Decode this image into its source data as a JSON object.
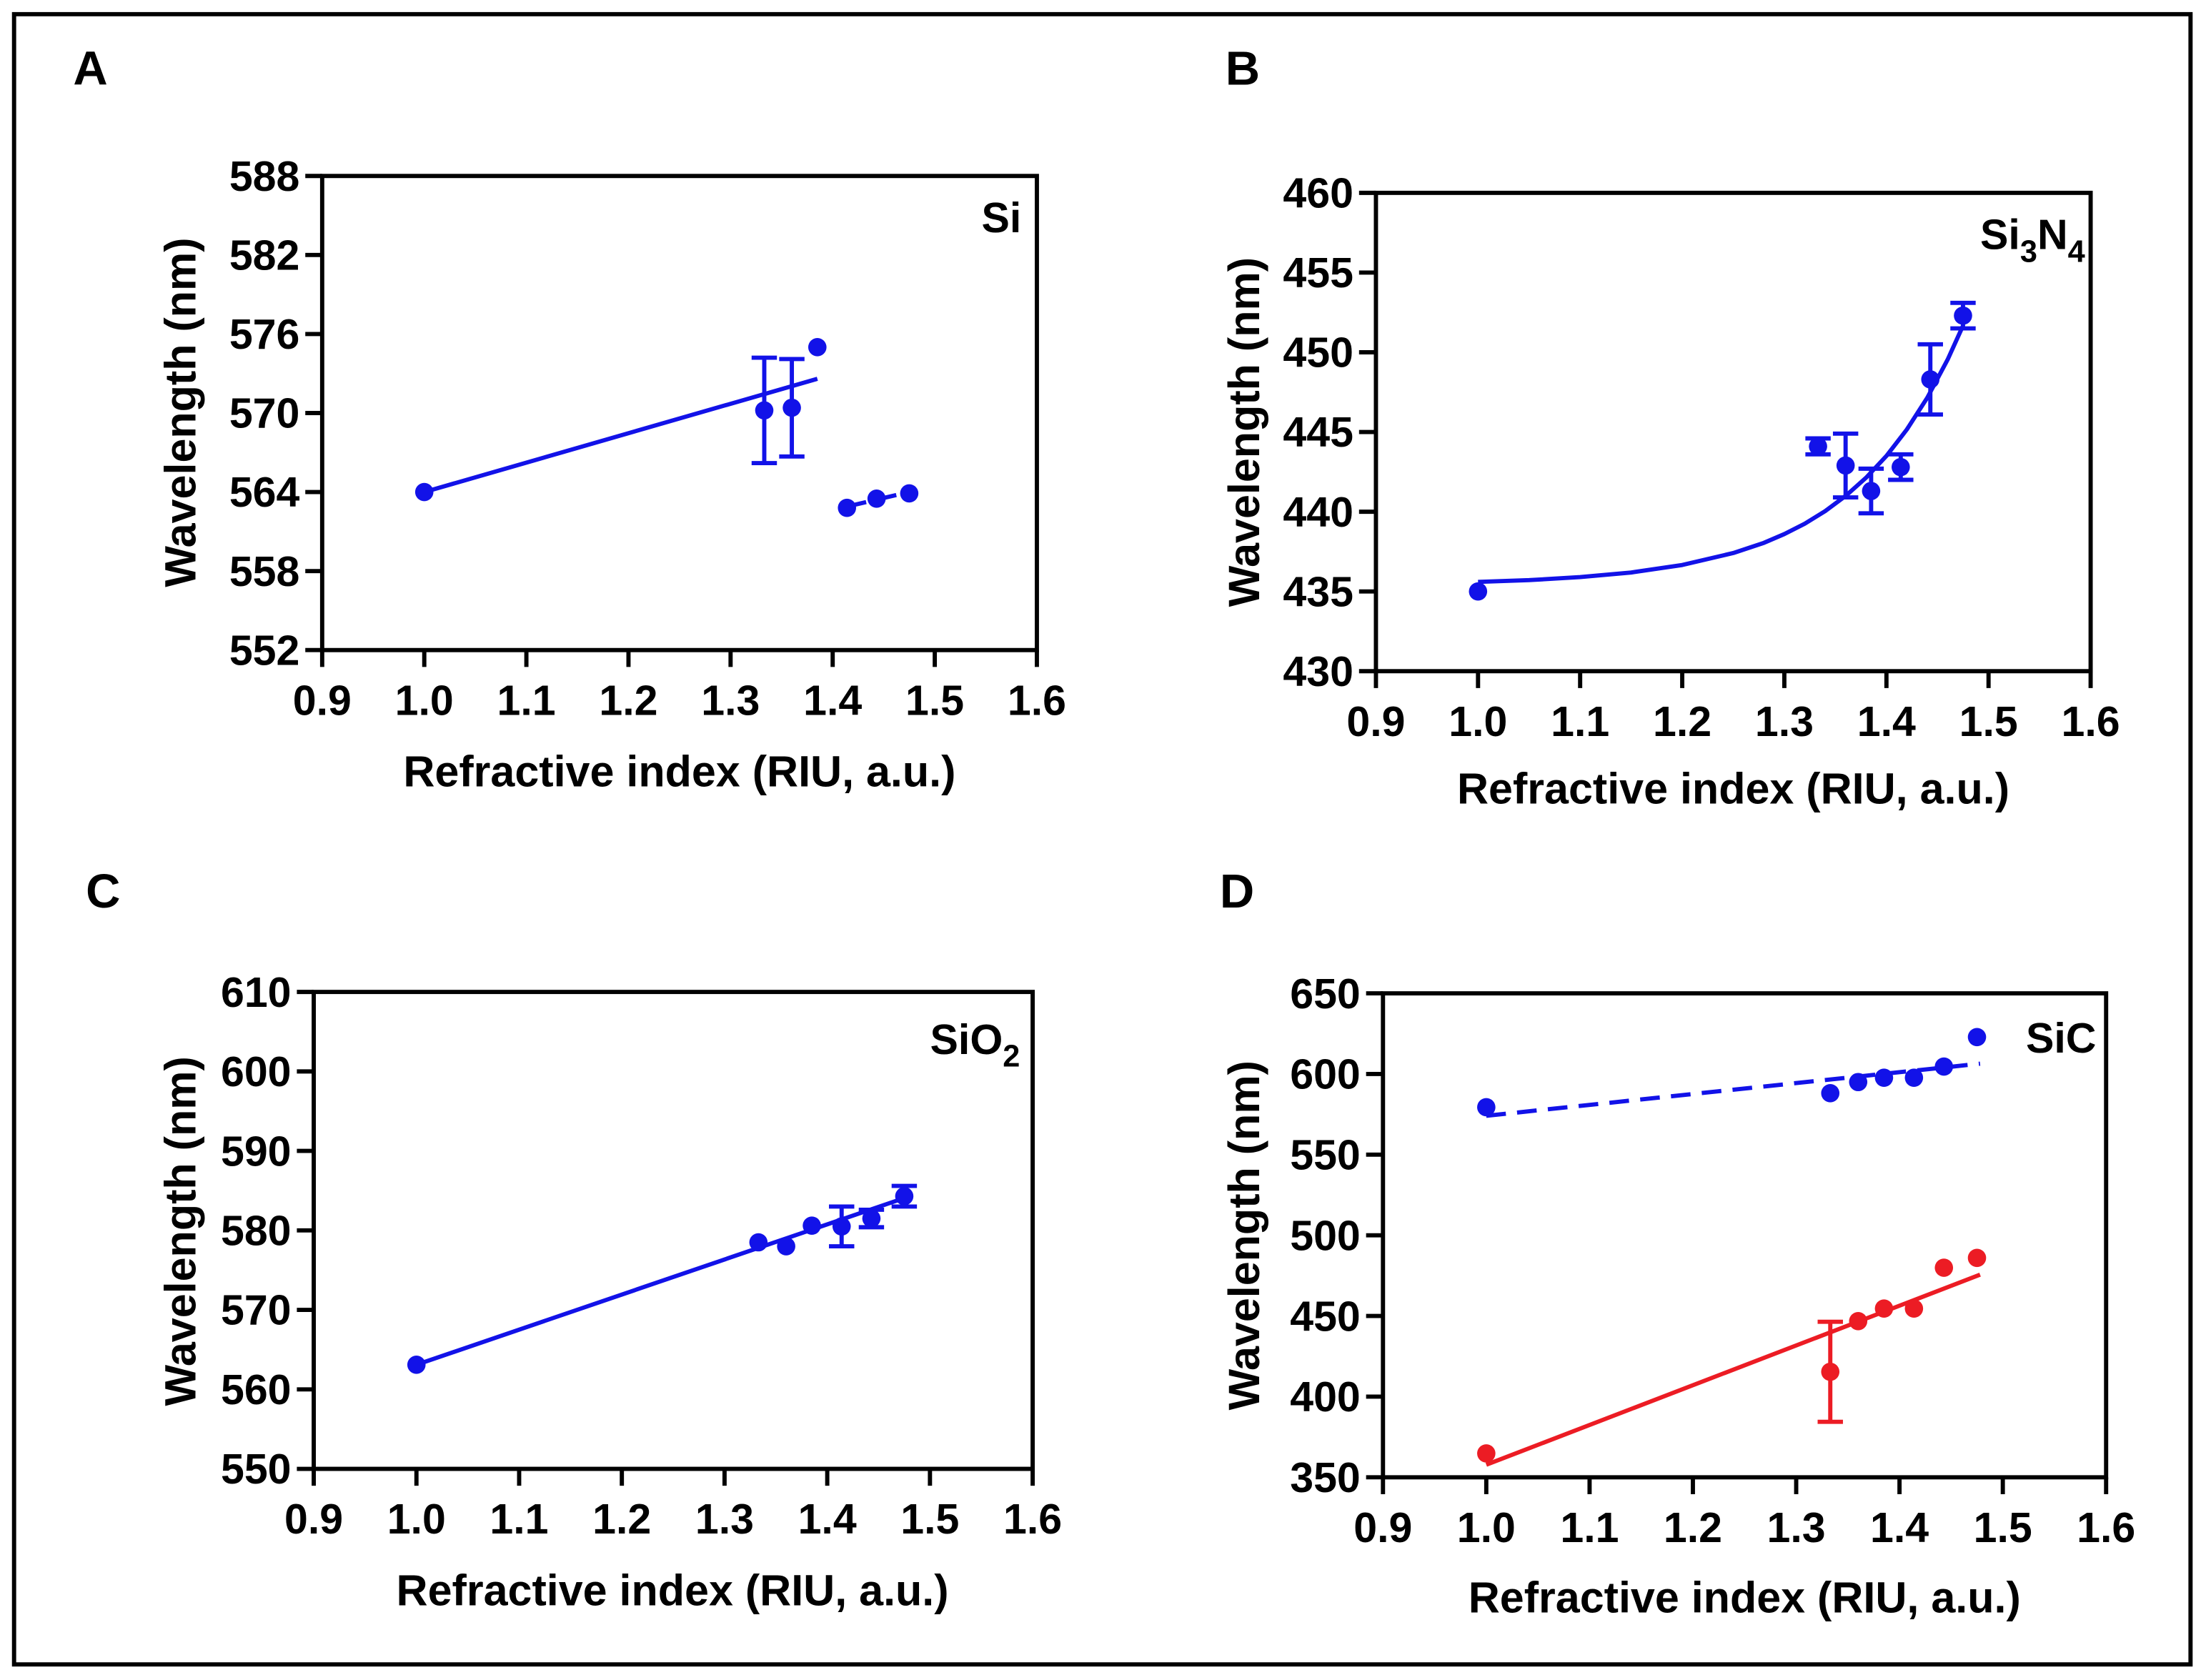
{
  "chart_data": [
    {
      "panel": "A",
      "type": "scatter",
      "title_parts": [
        {
          "text": "Si"
        }
      ],
      "xlabel": "Refractive index (RIU, a.u.)",
      "ylabel": "Wavelength (nm)",
      "xlim": [
        0.9,
        1.6
      ],
      "ylim": [
        552,
        588
      ],
      "xticks": [
        "0.9",
        "1.0",
        "1.1",
        "1.2",
        "1.3",
        "1.4",
        "1.5",
        "1.6"
      ],
      "yticks": [
        "552",
        "558",
        "564",
        "570",
        "576",
        "582",
        "588"
      ],
      "series": [
        {
          "color": "#1212E8",
          "points": [
            {
              "x": 1.0,
              "y": 564.0,
              "err": 0
            },
            {
              "x": 1.333,
              "y": 570.2,
              "err": 4.0
            },
            {
              "x": 1.36,
              "y": 570.4,
              "err": 3.7
            },
            {
              "x": 1.385,
              "y": 575.0,
              "err": 0
            }
          ],
          "fit": {
            "dashed": false,
            "points": [
              [
                1.0,
                564.0
              ],
              [
                1.385,
                572.6
              ]
            ]
          }
        },
        {
          "color": "#1212E8",
          "points": [
            {
              "x": 1.414,
              "y": 562.8,
              "err": 0
            },
            {
              "x": 1.443,
              "y": 563.5,
              "err": 0
            },
            {
              "x": 1.475,
              "y": 563.9,
              "err": 0
            }
          ],
          "fit": {
            "dashed": true,
            "points": [
              [
                1.414,
                562.9
              ],
              [
                1.475,
                564.0
              ]
            ]
          }
        }
      ]
    },
    {
      "panel": "B",
      "type": "scatter",
      "title_parts": [
        {
          "text": "Si"
        },
        {
          "text": "3",
          "sub": true
        },
        {
          "text": "N"
        },
        {
          "text": "4",
          "sub": true
        }
      ],
      "xlabel": "Refractive index (RIU, a.u.)",
      "ylabel": "Wavelength (nm)",
      "xlim": [
        0.9,
        1.6
      ],
      "ylim": [
        430,
        460
      ],
      "xticks": [
        "0.9",
        "1.0",
        "1.1",
        "1.2",
        "1.3",
        "1.4",
        "1.5",
        "1.6"
      ],
      "yticks": [
        "430",
        "435",
        "440",
        "445",
        "450",
        "455",
        "460"
      ],
      "series": [
        {
          "color": "#1212E8",
          "points": [
            {
              "x": 1.0,
              "y": 435.0,
              "err": 0
            },
            {
              "x": 1.333,
              "y": 444.1,
              "err": 0.5
            },
            {
              "x": 1.36,
              "y": 442.9,
              "err": 2.0
            },
            {
              "x": 1.385,
              "y": 441.3,
              "err": 1.4
            },
            {
              "x": 1.414,
              "y": 442.8,
              "err": 0.8
            },
            {
              "x": 1.443,
              "y": 448.3,
              "err": 2.2
            },
            {
              "x": 1.475,
              "y": 452.3,
              "err": 0.8
            }
          ],
          "fit": {
            "dashed": false,
            "points": [
              [
                1.0,
                435.6
              ],
              [
                1.05,
                435.71
              ],
              [
                1.1,
                435.9
              ],
              [
                1.15,
                436.19
              ],
              [
                1.2,
                436.66
              ],
              [
                1.25,
                437.41
              ],
              [
                1.28,
                438.05
              ],
              [
                1.3,
                438.6
              ],
              [
                1.32,
                439.25
              ],
              [
                1.34,
                440.04
              ],
              [
                1.36,
                440.99
              ],
              [
                1.38,
                442.13
              ],
              [
                1.4,
                443.5
              ],
              [
                1.42,
                445.16
              ],
              [
                1.44,
                447.15
              ],
              [
                1.46,
                449.55
              ],
              [
                1.475,
                451.67
              ]
            ]
          }
        }
      ]
    },
    {
      "panel": "C",
      "type": "scatter",
      "title_parts": [
        {
          "text": "SiO"
        },
        {
          "text": "2",
          "sub": true
        }
      ],
      "xlabel": "Refractive index (RIU, a.u.)",
      "ylabel": "Wavelength (nm)",
      "xlim": [
        0.9,
        1.6
      ],
      "ylim": [
        550,
        610
      ],
      "xticks": [
        "0.9",
        "1.0",
        "1.1",
        "1.2",
        "1.3",
        "1.4",
        "1.5",
        "1.6"
      ],
      "yticks": [
        "550",
        "560",
        "570",
        "580",
        "590",
        "600",
        "610"
      ],
      "series": [
        {
          "color": "#1212E8",
          "points": [
            {
              "x": 1.0,
              "y": 563.1,
              "err": 0
            },
            {
              "x": 1.333,
              "y": 578.5,
              "err": 0
            },
            {
              "x": 1.36,
              "y": 578.0,
              "err": 0
            },
            {
              "x": 1.385,
              "y": 580.6,
              "err": 0
            },
            {
              "x": 1.414,
              "y": 580.5,
              "err": 2.5
            },
            {
              "x": 1.443,
              "y": 581.5,
              "err": 1.1
            },
            {
              "x": 1.475,
              "y": 584.3,
              "err": 1.3
            }
          ],
          "fit": {
            "dashed": false,
            "points": [
              [
                1.0,
                563.1
              ],
              [
                1.478,
                584.2
              ]
            ]
          }
        }
      ]
    },
    {
      "panel": "D",
      "type": "scatter",
      "title_parts": [
        {
          "text": "SiC"
        }
      ],
      "xlabel": "Refractive index (RIU, a.u.)",
      "ylabel": "Wavelength (nm)",
      "xlim": [
        0.9,
        1.6
      ],
      "ylim": [
        350,
        650
      ],
      "xticks": [
        "0.9",
        "1.0",
        "1.1",
        "1.2",
        "1.3",
        "1.4",
        "1.5",
        "1.6"
      ],
      "yticks": [
        "350",
        "400",
        "450",
        "500",
        "550",
        "600",
        "650"
      ],
      "series": [
        {
          "color": "#1212E8",
          "points": [
            {
              "x": 1.0,
              "y": 579.4,
              "err": 0
            },
            {
              "x": 1.333,
              "y": 588.1,
              "err": 0
            },
            {
              "x": 1.36,
              "y": 595.0,
              "err": 0
            },
            {
              "x": 1.385,
              "y": 597.7,
              "err": 0
            },
            {
              "x": 1.414,
              "y": 597.7,
              "err": 0
            },
            {
              "x": 1.443,
              "y": 604.6,
              "err": 0
            },
            {
              "x": 1.475,
              "y": 622.9,
              "err": 0
            }
          ],
          "fit": {
            "dashed": true,
            "points": [
              [
                1.0,
                574.1
              ],
              [
                1.478,
                606.4
              ]
            ]
          }
        },
        {
          "color": "#EC1C24",
          "points": [
            {
              "x": 1.0,
              "y": 364.8,
              "err": 0
            },
            {
              "x": 1.333,
              "y": 415.4,
              "err": 31.0
            },
            {
              "x": 1.36,
              "y": 446.8,
              "err": 0
            },
            {
              "x": 1.385,
              "y": 454.6,
              "err": 0
            },
            {
              "x": 1.414,
              "y": 454.6,
              "err": 0
            },
            {
              "x": 1.443,
              "y": 479.9,
              "err": 0
            },
            {
              "x": 1.475,
              "y": 486.0,
              "err": 0
            }
          ],
          "fit": {
            "dashed": false,
            "points": [
              [
                1.0,
                357.8
              ],
              [
                1.478,
                475.6
              ]
            ]
          }
        }
      ]
    }
  ]
}
